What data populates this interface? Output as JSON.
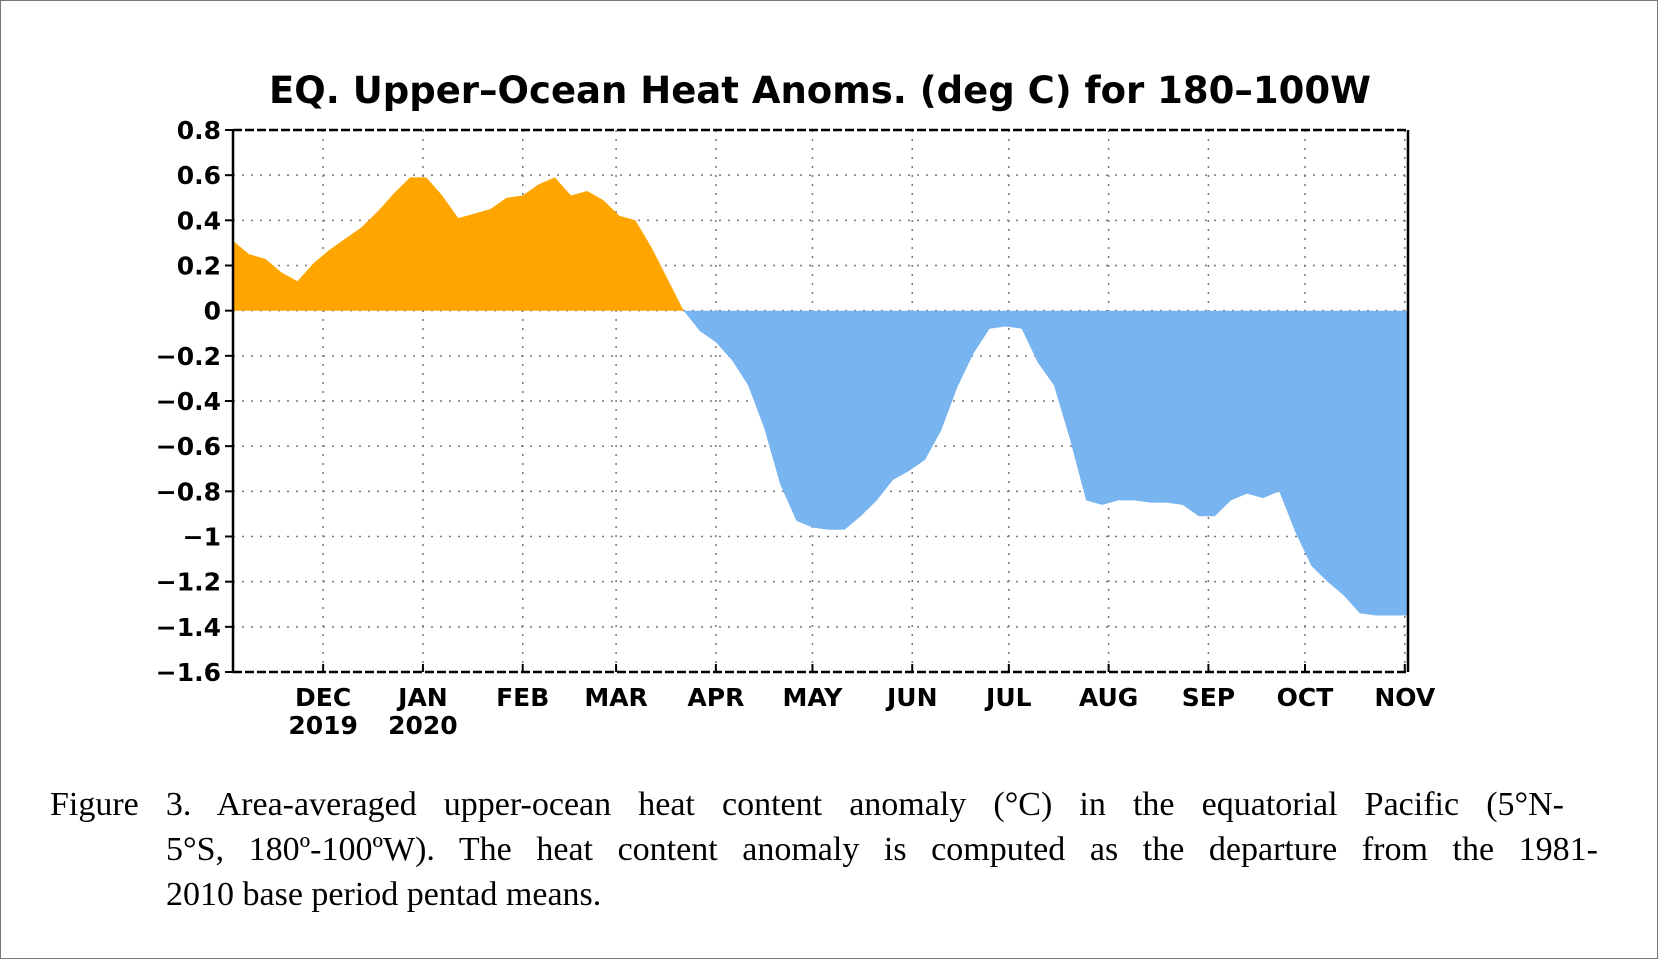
{
  "chart_data": {
    "type": "area",
    "title": "EQ. Upper–Ocean Heat Anoms. (deg C) for 180–100W",
    "xlabel": "",
    "ylabel": "",
    "ylim": [
      -1.6,
      0.8
    ],
    "yticks": [
      0.8,
      0.6,
      0.4,
      0.2,
      0,
      -0.2,
      -0.4,
      -0.6,
      -0.8,
      -1,
      -1.2,
      -1.4,
      -1.6
    ],
    "ytick_labels": [
      "0.8",
      "0.6",
      "0.4",
      "0.2",
      "0",
      "−0.2",
      "−0.4",
      "−0.6",
      "−0.8",
      "−1",
      "−1.2",
      "−1.4",
      "−1.6"
    ],
    "xlim": [
      "2019-11-03",
      "2020-11-02"
    ],
    "xticks": [
      {
        "date": "2019-12-01",
        "label": "DEC",
        "sublabel": "2019"
      },
      {
        "date": "2020-01-01",
        "label": "JAN",
        "sublabel": "2020"
      },
      {
        "date": "2020-02-01",
        "label": "FEB",
        "sublabel": ""
      },
      {
        "date": "2020-03-01",
        "label": "MAR",
        "sublabel": ""
      },
      {
        "date": "2020-04-01",
        "label": "APR",
        "sublabel": ""
      },
      {
        "date": "2020-05-01",
        "label": "MAY",
        "sublabel": ""
      },
      {
        "date": "2020-06-01",
        "label": "JUN",
        "sublabel": ""
      },
      {
        "date": "2020-07-01",
        "label": "JUL",
        "sublabel": ""
      },
      {
        "date": "2020-08-01",
        "label": "AUG",
        "sublabel": ""
      },
      {
        "date": "2020-09-01",
        "label": "SEP",
        "sublabel": ""
      },
      {
        "date": "2020-10-01",
        "label": "OCT",
        "sublabel": ""
      },
      {
        "date": "2020-11-01",
        "label": "NOV",
        "sublabel": ""
      }
    ],
    "grid": true,
    "positive_color": "#ffa500",
    "negative_color": "#78b4f0",
    "series": [
      {
        "x": [
          "2019-11-03",
          "2019-11-08",
          "2019-11-13",
          "2019-11-18",
          "2019-11-23",
          "2019-11-28",
          "2019-12-03",
          "2019-12-08",
          "2019-12-13",
          "2019-12-18",
          "2019-12-23",
          "2019-12-28",
          "2020-01-02",
          "2020-01-07",
          "2020-01-12",
          "2020-01-17",
          "2020-01-22",
          "2020-01-27",
          "2020-02-01",
          "2020-02-06",
          "2020-02-11",
          "2020-02-16",
          "2020-02-21",
          "2020-02-26",
          "2020-03-02",
          "2020-03-07",
          "2020-03-12",
          "2020-03-17",
          "2020-03-22",
          "2020-03-27",
          "2020-04-01",
          "2020-04-06",
          "2020-04-11",
          "2020-04-16",
          "2020-04-21",
          "2020-04-26",
          "2020-05-01",
          "2020-05-06",
          "2020-05-11",
          "2020-05-16",
          "2020-05-21",
          "2020-05-26",
          "2020-05-31",
          "2020-06-05",
          "2020-06-10",
          "2020-06-15",
          "2020-06-20",
          "2020-06-25",
          "2020-06-30",
          "2020-07-05",
          "2020-07-10",
          "2020-07-15",
          "2020-07-20",
          "2020-07-25",
          "2020-07-30",
          "2020-08-04",
          "2020-08-09",
          "2020-08-14",
          "2020-08-19",
          "2020-08-24",
          "2020-08-29",
          "2020-09-03",
          "2020-09-08",
          "2020-09-13",
          "2020-09-18",
          "2020-09-23",
          "2020-09-28",
          "2020-10-03",
          "2020-10-08",
          "2020-10-13",
          "2020-10-18",
          "2020-10-23",
          "2020-10-28",
          "2020-11-02"
        ],
        "values": [
          0.31,
          0.25,
          0.23,
          0.17,
          0.13,
          0.21,
          0.27,
          0.32,
          0.37,
          0.44,
          0.52,
          0.59,
          0.59,
          0.51,
          0.41,
          0.43,
          0.45,
          0.5,
          0.51,
          0.56,
          0.59,
          0.51,
          0.53,
          0.49,
          0.42,
          0.4,
          0.28,
          0.14,
          0.0,
          -0.09,
          -0.14,
          -0.22,
          -0.33,
          -0.52,
          -0.77,
          -0.93,
          -0.96,
          -0.97,
          -0.97,
          -0.91,
          -0.84,
          -0.75,
          -0.71,
          -0.66,
          -0.53,
          -0.34,
          -0.19,
          -0.08,
          -0.07,
          -0.08,
          -0.23,
          -0.33,
          -0.57,
          -0.84,
          -0.86,
          -0.84,
          -0.84,
          -0.85,
          -0.85,
          -0.86,
          -0.91,
          -0.91,
          -0.84,
          -0.81,
          -0.83,
          -0.8,
          -0.98,
          -1.13,
          -1.2,
          -1.26,
          -1.34,
          -1.35,
          -1.35,
          -1.35
        ]
      }
    ]
  },
  "caption": {
    "line1": "Figure 3. Area-averaged upper-ocean heat content anomaly (°C) in the equatorial Pacific (5°N-",
    "line2": "5°S, 180º-100ºW). The heat content anomaly is computed as the departure from the 1981-",
    "line3": "2010 base period pentad means."
  }
}
